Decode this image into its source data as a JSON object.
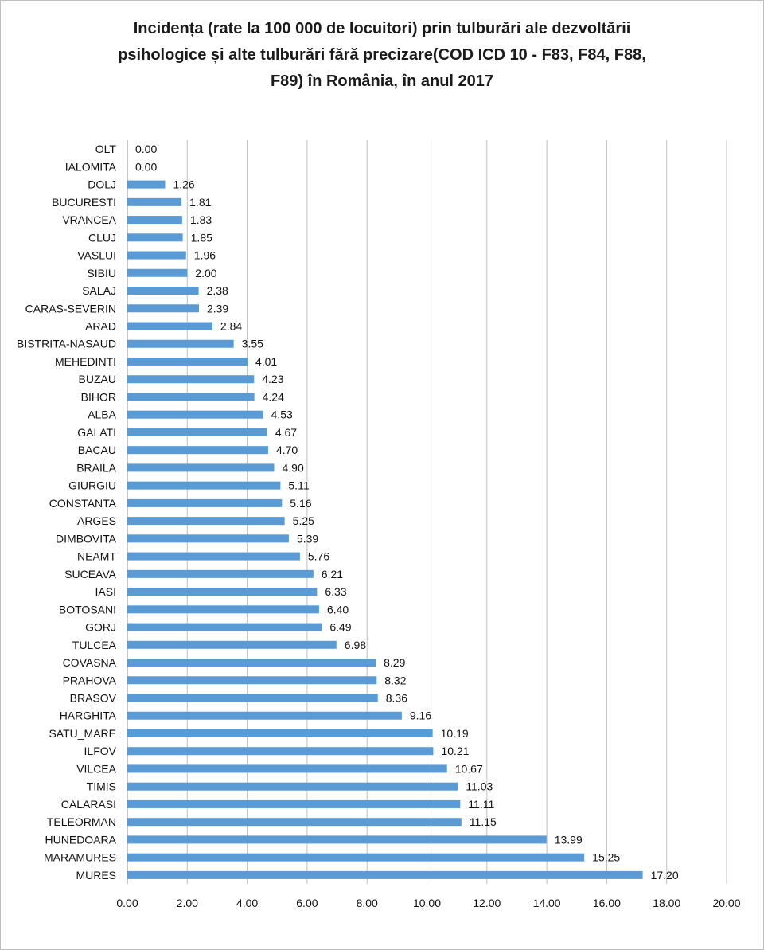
{
  "chart_data": {
    "type": "bar",
    "orientation": "horizontal",
    "title_lines": [
      "Incidența (rate la 100 000 de locuitori) prin tulburări ale dezvoltării",
      "psihologice și alte tulburări fără precizare(COD ICD 10 - F83, F84, F88,",
      "F89) în România, în anul 2017"
    ],
    "categories": [
      "OLT",
      "IALOMITA",
      "DOLJ",
      "BUCURESTI",
      "VRANCEA",
      "CLUJ",
      "VASLUI",
      "SIBIU",
      "SALAJ",
      "CARAS-SEVERIN",
      "ARAD",
      "BISTRITA-NASAUD",
      "MEHEDINTI",
      "BUZAU",
      "BIHOR",
      "ALBA",
      "GALATI",
      "BACAU",
      "BRAILA",
      "GIURGIU",
      "CONSTANTA",
      "ARGES",
      "DIMBOVITA",
      "NEAMT",
      "SUCEAVA",
      "IASI",
      "BOTOSANI",
      "GORJ",
      "TULCEA",
      "COVASNA",
      "PRAHOVA",
      "BRASOV",
      "HARGHITA",
      "SATU_MARE",
      "ILFOV",
      "VILCEA",
      "TIMIS",
      "CALARASI",
      "TELEORMAN",
      "HUNEDOARA",
      "MARAMURES",
      "MURES"
    ],
    "values": [
      0.0,
      0.0,
      1.26,
      1.81,
      1.83,
      1.85,
      1.96,
      2.0,
      2.38,
      2.39,
      2.84,
      3.55,
      4.01,
      4.23,
      4.24,
      4.53,
      4.67,
      4.7,
      4.9,
      5.11,
      5.16,
      5.25,
      5.39,
      5.76,
      6.21,
      6.33,
      6.4,
      6.49,
      6.98,
      8.29,
      8.32,
      8.36,
      9.16,
      10.19,
      10.21,
      10.67,
      11.03,
      11.11,
      11.15,
      13.99,
      15.25,
      17.2
    ],
    "value_labels": [
      "0.00",
      "0.00",
      "1.26",
      "1.81",
      "1.83",
      "1.85",
      "1.96",
      "2.00",
      "2.38",
      "2.39",
      "2.84",
      "3.55",
      "4.01",
      "4.23",
      "4.24",
      "4.53",
      "4.67",
      "4.70",
      "4.90",
      "5.11",
      "5.16",
      "5.25",
      "5.39",
      "5.76",
      "6.21",
      "6.33",
      "6.40",
      "6.49",
      "6.98",
      "8.29",
      "8.32",
      "8.36",
      "9.16",
      "10.19",
      "10.21",
      "10.67",
      "11.03",
      "11.11",
      "11.15",
      "13.99",
      "15.25",
      "17.20"
    ],
    "xlim": [
      0,
      20
    ],
    "x_ticks": [
      0,
      2,
      4,
      6,
      8,
      10,
      12,
      14,
      16,
      18,
      20
    ],
    "x_tick_labels": [
      "0.00",
      "2.00",
      "4.00",
      "6.00",
      "8.00",
      "10.00",
      "12.00",
      "14.00",
      "16.00",
      "18.00",
      "20.00"
    ],
    "xlabel": "",
    "ylabel": "",
    "grid": "vertical",
    "legend": "none",
    "bar_color": "#5b9bd5",
    "grid_color": "#bfbfbf"
  }
}
